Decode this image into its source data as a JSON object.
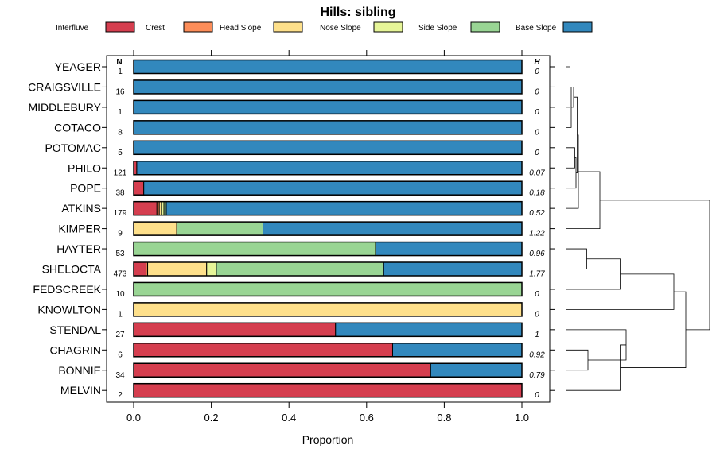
{
  "chart_data": {
    "type": "bar",
    "orientation": "horizontal",
    "stacked": true,
    "title": "Hills: sibling",
    "xlabel": "Proportion",
    "ylabel": "",
    "xlim": [
      -0.07,
      1.07
    ],
    "xticks": [
      0,
      0.2,
      0.4,
      0.6,
      0.8,
      1
    ],
    "xtick_labels": [
      "0.0",
      "0.2",
      "0.4",
      "0.6",
      "0.8",
      "1.0"
    ],
    "n_header": "N",
    "h_header": "H",
    "legend_position": "top",
    "legend": [
      {
        "name": "Interfluve",
        "color": "#D53E4F"
      },
      {
        "name": "Crest",
        "color": "#FC8D59"
      },
      {
        "name": "Head Slope",
        "color": "#FEE08B"
      },
      {
        "name": "Nose Slope",
        "color": "#E6F598"
      },
      {
        "name": "Side Slope",
        "color": "#99D594"
      },
      {
        "name": "Base Slope",
        "color": "#3288BD"
      }
    ],
    "categories": [
      "YEAGER",
      "CRAIGSVILLE",
      "MIDDLEBURY",
      "COTACO",
      "POTOMAC",
      "PHILO",
      "POPE",
      "ATKINS",
      "KIMPER",
      "HAYTER",
      "SHELOCTA",
      "FEDSCREEK",
      "KNOWLTON",
      "STENDAL",
      "CHAGRIN",
      "BONNIE",
      "MELVIN"
    ],
    "n_values": [
      "1",
      "16",
      "1",
      "8",
      "5",
      "121",
      "38",
      "179",
      "9",
      "53",
      "473",
      "10",
      "1",
      "27",
      "6",
      "34",
      "2"
    ],
    "h_values": [
      "0",
      "0",
      "0",
      "0",
      "0",
      "0.07",
      "0.18",
      "0.52",
      "1.22",
      "0.96",
      "1.77",
      "0",
      "0",
      "1",
      "0.92",
      "0.79",
      "0"
    ],
    "series": [
      {
        "name": "Interfluve",
        "values": [
          0,
          0,
          0,
          0,
          0,
          0.008,
          0.026,
          0.06,
          0,
          0,
          0.032,
          0,
          0,
          0.52,
          0.667,
          0.765,
          1
        ]
      },
      {
        "name": "Crest",
        "values": [
          0,
          0,
          0,
          0,
          0,
          0,
          0,
          0.006,
          0,
          0,
          0.004,
          0,
          0,
          0,
          0,
          0,
          0
        ]
      },
      {
        "name": "Head Slope",
        "values": [
          0,
          0,
          0,
          0,
          0,
          0,
          0,
          0.006,
          0.111,
          0,
          0.152,
          0,
          1,
          0,
          0,
          0,
          0
        ]
      },
      {
        "name": "Nose Slope",
        "values": [
          0,
          0,
          0,
          0,
          0,
          0,
          0,
          0.006,
          0,
          0,
          0.025,
          0,
          0,
          0,
          0,
          0,
          0
        ]
      },
      {
        "name": "Side Slope",
        "values": [
          0,
          0,
          0,
          0,
          0,
          0,
          0,
          0.006,
          0.222,
          0.623,
          0.431,
          1,
          0,
          0,
          0,
          0,
          0
        ]
      },
      {
        "name": "Base Slope",
        "values": [
          1,
          1,
          1,
          1,
          1,
          0.992,
          0.974,
          0.916,
          0.667,
          0.377,
          0.356,
          0,
          0,
          0.48,
          0.333,
          0.235,
          0
        ]
      }
    ],
    "dendrogram": {
      "merges": [
        [
          0,
          2
        ],
        [
          1,
          3
        ],
        [
          -1,
          -2
        ],
        [
          4,
          5
        ],
        [
          -4,
          6
        ],
        [
          -3,
          -5
        ],
        [
          -6,
          7
        ],
        [
          -7,
          8
        ],
        [
          9,
          10
        ],
        [
          -9,
          11
        ],
        [
          -10,
          12
        ],
        [
          14,
          15
        ],
        [
          13,
          -12
        ],
        [
          16,
          -13
        ],
        [
          -11,
          -14
        ],
        [
          -8,
          -15
        ]
      ],
      "heights": [
        0.03,
        0.04,
        0.06,
        0.07,
        0.08,
        0.09,
        0.1,
        0.28,
        0.17,
        0.45,
        0.9,
        0.18,
        0.5,
        0.45,
        1.0,
        1.2
      ]
    }
  }
}
